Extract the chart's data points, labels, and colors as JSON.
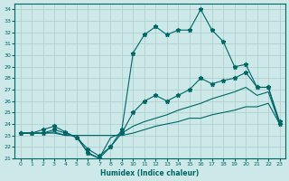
{
  "xlabel": "Humidex (Indice chaleur)",
  "bg_color": "#cce8e8",
  "grid_color": "#aacccc",
  "line_color": "#006666",
  "xlim": [
    -0.5,
    23.5
  ],
  "ylim": [
    21,
    34.5
  ],
  "yticks": [
    21,
    22,
    23,
    24,
    25,
    26,
    27,
    28,
    29,
    30,
    31,
    32,
    33,
    34
  ],
  "xticks": [
    0,
    1,
    2,
    3,
    4,
    5,
    6,
    7,
    8,
    9,
    10,
    11,
    12,
    13,
    14,
    15,
    16,
    17,
    18,
    19,
    20,
    21,
    22,
    23
  ],
  "line1_x": [
    0,
    1,
    2,
    3,
    4,
    5,
    6,
    7,
    8,
    9,
    10,
    11,
    12,
    13,
    14,
    15,
    16,
    17,
    18,
    19,
    20,
    21,
    22,
    23
  ],
  "line1_y": [
    23.2,
    23.2,
    23.5,
    23.8,
    23.3,
    22.8,
    21.8,
    21.2,
    22.0,
    23.5,
    30.2,
    31.8,
    32.5,
    31.8,
    32.2,
    32.2,
    34.0,
    32.2,
    31.2,
    29.0,
    29.2,
    27.2,
    27.2,
    24.2
  ],
  "line2_x": [
    0,
    1,
    2,
    3,
    4,
    5,
    6,
    7,
    8,
    9,
    10,
    11,
    12,
    13,
    14,
    15,
    16,
    17,
    18,
    19,
    20,
    21,
    22,
    23
  ],
  "line2_y": [
    23.2,
    23.2,
    23.2,
    23.5,
    23.2,
    22.8,
    21.5,
    21.0,
    22.0,
    23.2,
    25.0,
    26.0,
    26.5,
    26.0,
    26.5,
    27.0,
    28.0,
    27.5,
    27.8,
    28.0,
    28.5,
    27.2,
    27.2,
    24.0
  ],
  "line3_x": [
    0,
    1,
    2,
    3,
    4,
    5,
    6,
    7,
    8,
    9,
    10,
    11,
    12,
    13,
    14,
    15,
    16,
    17,
    18,
    19,
    20,
    21,
    22,
    23
  ],
  "line3_y": [
    23.2,
    23.2,
    23.2,
    23.3,
    23.0,
    23.0,
    21.4,
    21.0,
    22.8,
    23.2,
    23.8,
    24.2,
    24.5,
    24.8,
    25.2,
    25.5,
    25.8,
    26.2,
    26.5,
    26.8,
    27.2,
    26.5,
    26.8,
    24.0
  ],
  "line4_x": [
    0,
    1,
    2,
    3,
    4,
    5,
    6,
    7,
    8,
    9,
    10,
    11,
    12,
    13,
    14,
    15,
    16,
    17,
    18,
    19,
    20,
    21,
    22,
    23
  ],
  "line4_y": [
    23.2,
    23.2,
    23.2,
    23.2,
    23.0,
    23.0,
    23.0,
    23.0,
    23.0,
    23.0,
    23.2,
    23.5,
    23.8,
    24.0,
    24.2,
    24.5,
    24.5,
    24.8,
    25.0,
    25.2,
    25.5,
    25.5,
    25.8,
    24.0
  ]
}
